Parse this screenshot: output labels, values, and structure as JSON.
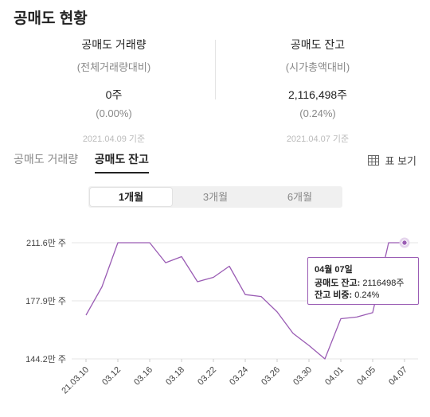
{
  "title": "공매도 현황",
  "summary": {
    "volume": {
      "label": "공매도 거래량",
      "sub": "(전체거래량대비)",
      "value": "0주",
      "ratio": "(0.00%)",
      "date": "2021.04.09 기준"
    },
    "balance": {
      "label": "공매도 잔고",
      "sub": "(시가총액대비)",
      "value": "2,116,498주",
      "ratio": "(0.24%)",
      "date": "2021.04.07 기준"
    }
  },
  "tabs": [
    {
      "label": "공매도 거래량",
      "active": false
    },
    {
      "label": "공매도 잔고",
      "active": true
    }
  ],
  "table_view_label": "표 보기",
  "periods": [
    {
      "label": "1개월",
      "active": true
    },
    {
      "label": "3개월",
      "active": false
    },
    {
      "label": "6개월",
      "active": false
    }
  ],
  "tooltip": {
    "date": "04월 07일",
    "row1_key": "공매도 잔고:",
    "row1_val": " 2116498주",
    "row2_key": "잔고 비중:",
    "row2_val": " 0.24%"
  },
  "colors": {
    "line": "#9a5cb4",
    "grid": "#e6e6e6"
  },
  "chart_data": {
    "type": "line",
    "y_unit": "만 주",
    "yticks": [
      "211.6만 주",
      "177.9만 주",
      "144.2만 주"
    ],
    "ytick_values": [
      211.6,
      177.9,
      144.2
    ],
    "ylim": [
      144.2,
      211.6
    ],
    "xticks": [
      "21.03.10",
      "03.12",
      "03.16",
      "03.18",
      "03.22",
      "03.24",
      "03.26",
      "03.30",
      "04.01",
      "04.05",
      "04.07"
    ],
    "x": [
      "21.03.10",
      "03.11",
      "03.12",
      "03.15",
      "03.16",
      "03.17",
      "03.18",
      "03.19",
      "03.22",
      "03.23",
      "03.24",
      "03.25",
      "03.26",
      "03.29",
      "03.30",
      "03.31",
      "04.01",
      "04.02",
      "04.05",
      "04.06",
      "04.07"
    ],
    "series": [
      {
        "values": [
          169.6,
          186.0,
          211.6,
          211.6,
          211.6,
          200.0,
          203.5,
          189.0,
          191.5,
          198.0,
          181.5,
          180.4,
          171.5,
          159.0,
          152.0,
          144.2,
          167.5,
          168.5,
          171.0,
          211.6,
          211.6
        ]
      }
    ],
    "highlight_index": 20,
    "grid": "horizontal"
  }
}
